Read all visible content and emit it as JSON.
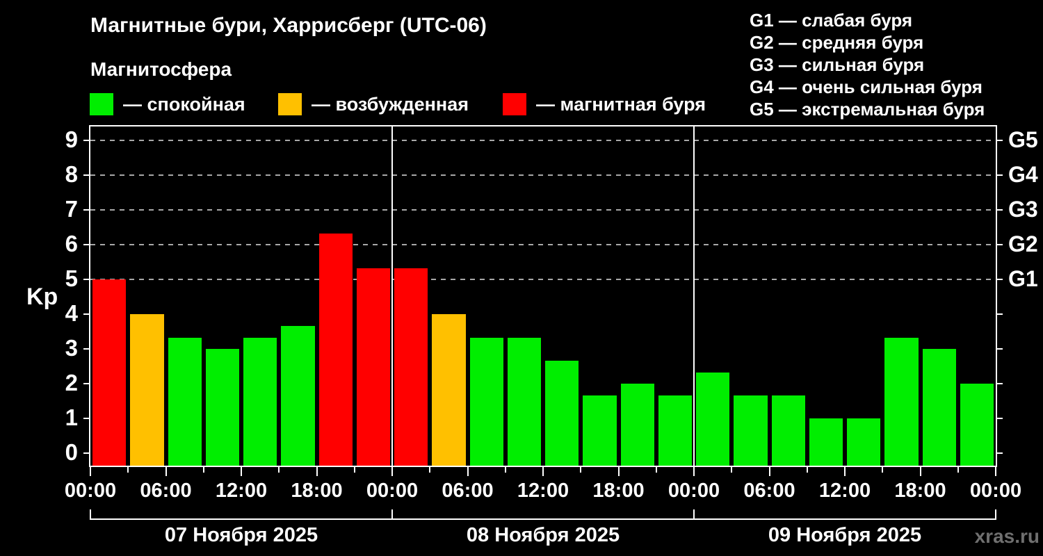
{
  "header": {
    "title": "Магнитные бури, Харрисберг (UTC-06)",
    "subtitle": "Магнитосфера",
    "legend": [
      {
        "state": "quiet",
        "label": "— спокойная"
      },
      {
        "state": "excited",
        "label": "— возбужденная"
      },
      {
        "state": "storm",
        "label": "— магнитная буря"
      }
    ],
    "g_scale_legend": [
      "G1 — слабая буря",
      "G2 — средняя буря",
      "G3 — сильная буря",
      "G4 — очень сильная буря",
      "G5 — экстремальная буря"
    ]
  },
  "chart_data": {
    "type": "bar",
    "title": "Магнитные бури, Харрисберг (UTC-06)",
    "ylabel": "Kp",
    "ylim": [
      0,
      9
    ],
    "y_ticks": [
      0,
      1,
      2,
      3,
      4,
      5,
      6,
      7,
      8,
      9
    ],
    "grid_levels": [
      5,
      6,
      7,
      8,
      9
    ],
    "grid_on": true,
    "right_axis_labels": [
      {
        "kp": 5,
        "label": "G1"
      },
      {
        "kp": 6,
        "label": "G2"
      },
      {
        "kp": 7,
        "label": "G3"
      },
      {
        "kp": 8,
        "label": "G4"
      },
      {
        "kp": 9,
        "label": "G5"
      }
    ],
    "bar_interval_hours": 3,
    "time_labels_per_day": [
      "00:00",
      "06:00",
      "12:00",
      "18:00"
    ],
    "final_time_label": "00:00",
    "color_map": {
      "quiet": "#00ee00",
      "excited": "#ffc000",
      "storm": "#ff0000"
    },
    "days": [
      {
        "date": "07 Ноября 2025",
        "values": [
          5,
          4,
          3.33,
          3,
          3.33,
          3.67,
          6.33,
          5.33
        ],
        "colors": [
          "storm",
          "excited",
          "quiet",
          "quiet",
          "quiet",
          "quiet",
          "storm",
          "storm"
        ]
      },
      {
        "date": "08 Ноября 2025",
        "values": [
          5.33,
          4,
          3.33,
          3.33,
          2.67,
          1.67,
          2,
          1.67
        ],
        "colors": [
          "storm",
          "excited",
          "quiet",
          "quiet",
          "quiet",
          "quiet",
          "quiet",
          "quiet"
        ]
      },
      {
        "date": "09 Ноября 2025",
        "values": [
          2.33,
          1.67,
          1.67,
          1,
          1,
          3.33,
          3,
          2
        ],
        "colors": [
          "quiet",
          "quiet",
          "quiet",
          "quiet",
          "quiet",
          "quiet",
          "quiet",
          "quiet"
        ]
      }
    ]
  },
  "footer": {
    "watermark": "xras.ru"
  }
}
